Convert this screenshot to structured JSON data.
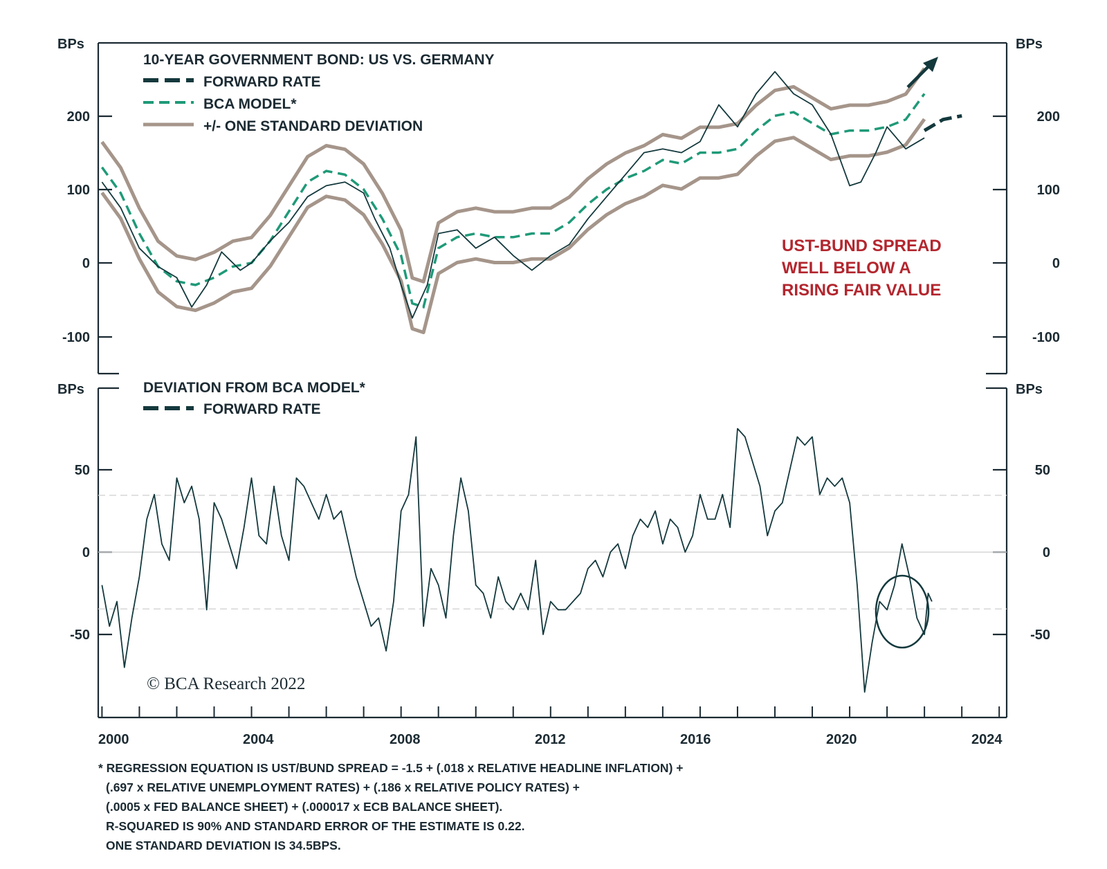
{
  "colors": {
    "spread": "#14393d",
    "model": "#1f9a78",
    "band": "#a5958a",
    "annotation": "#b3262e",
    "axis": "#1c2b33",
    "reference": "#d6d6d6"
  },
  "chart_data": [
    {
      "type": "line",
      "title": "10-YEAR GOVERNMENT BOND: US VS. GERMANY",
      "ylabel_left": "BPs",
      "ylabel_right": "BPs",
      "ylim": [
        -150,
        300
      ],
      "yticks": [
        -100,
        0,
        100,
        200
      ],
      "xlim": [
        1999.9,
        2024.2
      ],
      "xticks": [
        2000,
        2004,
        2008,
        2012,
        2016,
        2020,
        2024
      ],
      "legend": [
        {
          "label": "FORWARD RATE",
          "style": "dashed-dark"
        },
        {
          "label": "BCA MODEL*",
          "style": "dashed-green"
        },
        {
          "label": "+/- ONE STANDARD DEVIATION",
          "style": "solid-tan"
        }
      ],
      "annotation": [
        "UST-BUND SPREAD",
        "WELL BELOW A",
        "RISING FAIR VALUE"
      ],
      "series": [
        {
          "name": "UST-BUND SPREAD",
          "points": [
            [
              2000.0,
              110
            ],
            [
              2000.5,
              75
            ],
            [
              2001.0,
              20
            ],
            [
              2001.5,
              -5
            ],
            [
              2002.0,
              -20
            ],
            [
              2002.4,
              -60
            ],
            [
              2002.8,
              -30
            ],
            [
              2003.2,
              15
            ],
            [
              2003.7,
              -10
            ],
            [
              2004.0,
              0
            ],
            [
              2004.5,
              30
            ],
            [
              2005.0,
              55
            ],
            [
              2005.5,
              90
            ],
            [
              2006.0,
              105
            ],
            [
              2006.5,
              110
            ],
            [
              2007.0,
              95
            ],
            [
              2007.3,
              60
            ],
            [
              2007.7,
              20
            ],
            [
              2008.0,
              -30
            ],
            [
              2008.3,
              -75
            ],
            [
              2008.7,
              -30
            ],
            [
              2009.0,
              40
            ],
            [
              2009.5,
              45
            ],
            [
              2010.0,
              20
            ],
            [
              2010.5,
              35
            ],
            [
              2011.0,
              10
            ],
            [
              2011.5,
              -10
            ],
            [
              2012.0,
              10
            ],
            [
              2012.5,
              25
            ],
            [
              2013.0,
              60
            ],
            [
              2013.5,
              90
            ],
            [
              2014.0,
              120
            ],
            [
              2014.5,
              150
            ],
            [
              2015.0,
              155
            ],
            [
              2015.5,
              150
            ],
            [
              2016.0,
              165
            ],
            [
              2016.5,
              215
            ],
            [
              2017.0,
              185
            ],
            [
              2017.5,
              230
            ],
            [
              2018.0,
              260
            ],
            [
              2018.5,
              230
            ],
            [
              2019.0,
              215
            ],
            [
              2019.5,
              175
            ],
            [
              2020.0,
              105
            ],
            [
              2020.3,
              110
            ],
            [
              2020.7,
              150
            ],
            [
              2021.0,
              185
            ],
            [
              2021.5,
              155
            ],
            [
              2022.0,
              170
            ]
          ]
        },
        {
          "name": "BCA MODEL*",
          "points": [
            [
              2000.0,
              130
            ],
            [
              2000.5,
              95
            ],
            [
              2001.0,
              40
            ],
            [
              2001.5,
              -5
            ],
            [
              2002.0,
              -25
            ],
            [
              2002.5,
              -30
            ],
            [
              2003.0,
              -20
            ],
            [
              2003.5,
              -5
            ],
            [
              2004.0,
              0
            ],
            [
              2004.5,
              30
            ],
            [
              2005.0,
              70
            ],
            [
              2005.5,
              110
            ],
            [
              2006.0,
              125
            ],
            [
              2006.5,
              120
            ],
            [
              2007.0,
              100
            ],
            [
              2007.5,
              60
            ],
            [
              2008.0,
              10
            ],
            [
              2008.3,
              -55
            ],
            [
              2008.6,
              -60
            ],
            [
              2009.0,
              20
            ],
            [
              2009.5,
              35
            ],
            [
              2010.0,
              40
            ],
            [
              2010.5,
              35
            ],
            [
              2011.0,
              35
            ],
            [
              2011.5,
              40
            ],
            [
              2012.0,
              40
            ],
            [
              2012.5,
              55
            ],
            [
              2013.0,
              80
            ],
            [
              2013.5,
              100
            ],
            [
              2014.0,
              115
            ],
            [
              2014.5,
              125
            ],
            [
              2015.0,
              140
            ],
            [
              2015.5,
              135
            ],
            [
              2016.0,
              150
            ],
            [
              2016.5,
              150
            ],
            [
              2017.0,
              155
            ],
            [
              2017.5,
              180
            ],
            [
              2018.0,
              200
            ],
            [
              2018.5,
              205
            ],
            [
              2019.0,
              190
            ],
            [
              2019.5,
              175
            ],
            [
              2020.0,
              180
            ],
            [
              2020.5,
              180
            ],
            [
              2021.0,
              185
            ],
            [
              2021.5,
              195
            ],
            [
              2022.0,
              230
            ]
          ]
        },
        {
          "name": "FORWARD RATE",
          "points": [
            [
              2022.0,
              180
            ],
            [
              2022.5,
              195
            ],
            [
              2023.0,
              200
            ]
          ]
        }
      ],
      "band_halfwidth": 34.5
    },
    {
      "type": "line",
      "title": "DEVIATION FROM BCA MODEL*",
      "ylabel_left": "BPs",
      "ylabel_right": "BPs",
      "ylim": [
        -100,
        100
      ],
      "yticks": [
        -50,
        0,
        50
      ],
      "reference_lines": [
        34.5,
        0,
        -34.5
      ],
      "xlim": [
        1999.9,
        2024.2
      ],
      "xticks": [
        2000,
        2004,
        2008,
        2012,
        2016,
        2020,
        2024
      ],
      "legend": [
        {
          "label": "FORWARD RATE",
          "style": "dashed-dark"
        }
      ],
      "series": [
        {
          "name": "DEVIATION FROM BCA MODEL*",
          "points": [
            [
              2000.0,
              -20
            ],
            [
              2000.2,
              -45
            ],
            [
              2000.4,
              -30
            ],
            [
              2000.6,
              -70
            ],
            [
              2000.8,
              -40
            ],
            [
              2001.0,
              -15
            ],
            [
              2001.2,
              20
            ],
            [
              2001.4,
              35
            ],
            [
              2001.6,
              5
            ],
            [
              2001.8,
              -5
            ],
            [
              2002.0,
              45
            ],
            [
              2002.2,
              30
            ],
            [
              2002.4,
              40
            ],
            [
              2002.6,
              20
            ],
            [
              2002.8,
              -35
            ],
            [
              2003.0,
              30
            ],
            [
              2003.2,
              20
            ],
            [
              2003.4,
              5
            ],
            [
              2003.6,
              -10
            ],
            [
              2003.8,
              15
            ],
            [
              2004.0,
              45
            ],
            [
              2004.2,
              10
            ],
            [
              2004.4,
              5
            ],
            [
              2004.6,
              40
            ],
            [
              2004.8,
              10
            ],
            [
              2005.0,
              -5
            ],
            [
              2005.2,
              45
            ],
            [
              2005.4,
              40
            ],
            [
              2005.6,
              30
            ],
            [
              2005.8,
              20
            ],
            [
              2006.0,
              35
            ],
            [
              2006.2,
              20
            ],
            [
              2006.4,
              25
            ],
            [
              2006.6,
              5
            ],
            [
              2006.8,
              -15
            ],
            [
              2007.0,
              -30
            ],
            [
              2007.2,
              -45
            ],
            [
              2007.4,
              -40
            ],
            [
              2007.6,
              -60
            ],
            [
              2007.8,
              -30
            ],
            [
              2008.0,
              25
            ],
            [
              2008.2,
              35
            ],
            [
              2008.4,
              70
            ],
            [
              2008.6,
              -45
            ],
            [
              2008.8,
              -10
            ],
            [
              2009.0,
              -20
            ],
            [
              2009.2,
              -40
            ],
            [
              2009.4,
              10
            ],
            [
              2009.6,
              45
            ],
            [
              2009.8,
              25
            ],
            [
              2010.0,
              -20
            ],
            [
              2010.2,
              -25
            ],
            [
              2010.4,
              -40
            ],
            [
              2010.6,
              -15
            ],
            [
              2010.8,
              -30
            ],
            [
              2011.0,
              -35
            ],
            [
              2011.2,
              -25
            ],
            [
              2011.4,
              -35
            ],
            [
              2011.6,
              -5
            ],
            [
              2011.8,
              -50
            ],
            [
              2012.0,
              -30
            ],
            [
              2012.2,
              -35
            ],
            [
              2012.4,
              -35
            ],
            [
              2012.6,
              -30
            ],
            [
              2012.8,
              -25
            ],
            [
              2013.0,
              -10
            ],
            [
              2013.2,
              -5
            ],
            [
              2013.4,
              -15
            ],
            [
              2013.6,
              0
            ],
            [
              2013.8,
              5
            ],
            [
              2014.0,
              -10
            ],
            [
              2014.2,
              10
            ],
            [
              2014.4,
              20
            ],
            [
              2014.6,
              15
            ],
            [
              2014.8,
              25
            ],
            [
              2015.0,
              5
            ],
            [
              2015.2,
              20
            ],
            [
              2015.4,
              15
            ],
            [
              2015.6,
              0
            ],
            [
              2015.8,
              10
            ],
            [
              2016.0,
              35
            ],
            [
              2016.2,
              20
            ],
            [
              2016.4,
              20
            ],
            [
              2016.6,
              35
            ],
            [
              2016.8,
              15
            ],
            [
              2017.0,
              75
            ],
            [
              2017.2,
              70
            ],
            [
              2017.4,
              55
            ],
            [
              2017.6,
              40
            ],
            [
              2017.8,
              10
            ],
            [
              2018.0,
              25
            ],
            [
              2018.2,
              30
            ],
            [
              2018.4,
              50
            ],
            [
              2018.6,
              70
            ],
            [
              2018.8,
              65
            ],
            [
              2019.0,
              70
            ],
            [
              2019.2,
              35
            ],
            [
              2019.4,
              45
            ],
            [
              2019.6,
              40
            ],
            [
              2019.8,
              45
            ],
            [
              2020.0,
              30
            ],
            [
              2020.2,
              -20
            ],
            [
              2020.4,
              -85
            ],
            [
              2020.6,
              -55
            ],
            [
              2020.8,
              -30
            ],
            [
              2021.0,
              -35
            ],
            [
              2021.2,
              -20
            ],
            [
              2021.4,
              5
            ],
            [
              2021.6,
              -15
            ],
            [
              2021.8,
              -40
            ],
            [
              2022.0,
              -50
            ],
            [
              2022.1,
              -25
            ],
            [
              2022.2,
              -30
            ]
          ]
        }
      ]
    }
  ],
  "top_panel": {
    "title": "10-YEAR GOVERNMENT BOND: US VS. GERMANY",
    "legend_forward": "FORWARD RATE",
    "legend_model": "BCA MODEL*",
    "legend_band": "+/- ONE STANDARD DEVIATION",
    "unit_left": "BPs",
    "unit_right": "BPs",
    "yticks": [
      "200",
      "100",
      "0",
      "-100"
    ],
    "annotation_line1": "UST-BUND SPREAD",
    "annotation_line2": "WELL BELOW A",
    "annotation_line3": "RISING FAIR VALUE"
  },
  "bottom_panel": {
    "title": "DEVIATION FROM BCA MODEL*",
    "legend_forward": "FORWARD RATE",
    "unit_left": "BPs",
    "unit_right": "BPs",
    "yticks": [
      "50",
      "0",
      "-50"
    ],
    "copyright": "© BCA Research 2022"
  },
  "xaxis": {
    "labels": [
      "2000",
      "2004",
      "2008",
      "2012",
      "2016",
      "2020",
      "2024"
    ]
  },
  "footnote": {
    "line1": "* REGRESSION EQUATION IS UST/BUND SPREAD = -1.5 + (.018 x RELATIVE HEADLINE INFLATION) +",
    "line2": "(.697 x RELATIVE UNEMPLOYMENT RATES) + (.186 x RELATIVE POLICY RATES) +",
    "line3": "(.0005 x FED BALANCE SHEET) + (.000017 x ECB BALANCE SHEET).",
    "line4": "R-SQUARED IS 90% AND STANDARD ERROR OF THE ESTIMATE IS 0.22.",
    "line5": "ONE STANDARD DEVIATION IS 34.5BPS."
  }
}
